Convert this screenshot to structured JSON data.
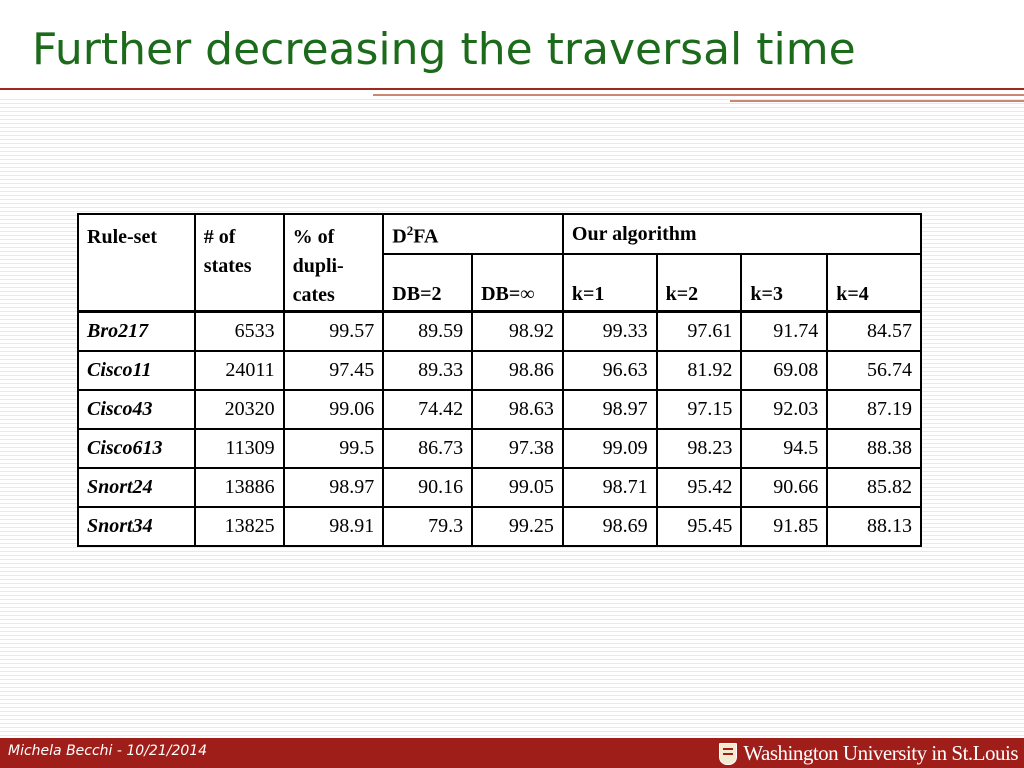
{
  "title": "Further decreasing the traversal time",
  "table": {
    "headers": {
      "ruleset": "Rule-set",
      "states_line1": "# of",
      "states_line2": "states",
      "dup_line1": "% of",
      "dup_line2": "dupli-",
      "dup_line3": "cates",
      "d2fa_prefix": "D",
      "d2fa_sup": "2",
      "d2fa_suffix": "FA",
      "our_algorithm": "Our algorithm",
      "sub": [
        "DB=2",
        "DB=∞",
        "k=1",
        "k=2",
        "k=3",
        "k=4"
      ]
    },
    "rows": [
      {
        "name": "Bro217",
        "cells": [
          "6533",
          "99.57",
          "89.59",
          "98.92",
          "99.33",
          "97.61",
          "91.74",
          "84.57"
        ]
      },
      {
        "name": "Cisco11",
        "cells": [
          "24011",
          "97.45",
          "89.33",
          "98.86",
          "96.63",
          "81.92",
          "69.08",
          "56.74"
        ]
      },
      {
        "name": "Cisco43",
        "cells": [
          "20320",
          "99.06",
          "74.42",
          "98.63",
          "98.97",
          "97.15",
          "92.03",
          "87.19"
        ]
      },
      {
        "name": "Cisco613",
        "cells": [
          "11309",
          "99.5",
          "86.73",
          "97.38",
          "99.09",
          "98.23",
          "94.5",
          "88.38"
        ]
      },
      {
        "name": "Snort24",
        "cells": [
          "13886",
          "98.97",
          "90.16",
          "99.05",
          "98.71",
          "95.42",
          "90.66",
          "85.82"
        ]
      },
      {
        "name": "Snort34",
        "cells": [
          "13825",
          "98.91",
          "79.3",
          "99.25",
          "98.69",
          "95.45",
          "91.85",
          "88.13"
        ]
      }
    ]
  },
  "footer": {
    "author_date": "Michela Becchi - 10/21/2014",
    "institution": "Washington University in St.Louis"
  },
  "colors": {
    "title": "#1b6b1b",
    "accent": "#a01e1a"
  }
}
